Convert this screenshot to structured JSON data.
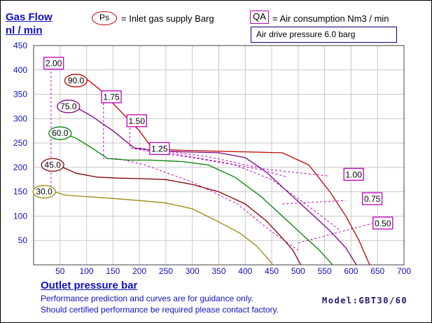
{
  "y_title_1": "Gas Flow",
  "y_title_2": "nl / min",
  "legend": {
    "ps_key": "Ps",
    "ps_desc": "= Inlet gas supply  Barg",
    "qa_key": "QA",
    "qa_desc": "= Air consumption  Nm3 / min",
    "air_drive": "Air drive pressure  6.0 barg"
  },
  "x_title": "Outlet pressure   bar",
  "notes": [
    "Performance prediction and curves are for guidance only.",
    "Should certified performance be required please contact factory."
  ],
  "model": "Model:GBT30/60",
  "colors": {
    "axis_text": "#1010c0",
    "qa_line": "#c000c0"
  },
  "chart_data": {
    "type": "line",
    "title": "",
    "xlabel": "Outlet pressure   bar",
    "ylabel": "Gas Flow nl / min",
    "xlim": [
      0,
      700
    ],
    "ylim": [
      0,
      450
    ],
    "x_ticks": [
      50,
      100,
      150,
      200,
      250,
      300,
      350,
      400,
      450,
      500,
      550,
      600,
      650,
      700
    ],
    "y_ticks": [
      50,
      100,
      150,
      200,
      250,
      300,
      350,
      400,
      450
    ],
    "grid": true,
    "series": [
      {
        "name": "30.0",
        "color": "#9a8a10",
        "label_at": [
          20,
          150
        ],
        "points": [
          [
            0,
            155
          ],
          [
            20,
            155
          ],
          [
            40,
            150
          ],
          [
            60,
            143
          ],
          [
            100,
            140
          ],
          [
            140,
            137
          ],
          [
            200,
            132
          ],
          [
            250,
            127
          ],
          [
            300,
            115
          ],
          [
            350,
            88
          ],
          [
            390,
            65
          ],
          [
            420,
            40
          ],
          [
            445,
            10
          ],
          [
            452,
            0
          ]
        ]
      },
      {
        "name": "45.0",
        "color": "#800000",
        "label_at": [
          36,
          205
        ],
        "points": [
          [
            40,
            205
          ],
          [
            60,
            198
          ],
          [
            80,
            188
          ],
          [
            120,
            180
          ],
          [
            160,
            178
          ],
          [
            200,
            177
          ],
          [
            250,
            175
          ],
          [
            300,
            165
          ],
          [
            350,
            150
          ],
          [
            400,
            125
          ],
          [
            440,
            90
          ],
          [
            470,
            55
          ],
          [
            490,
            30
          ],
          [
            505,
            0
          ]
        ]
      },
      {
        "name": "60.0",
        "color": "#008000",
        "label_at": [
          50,
          270
        ],
        "points": [
          [
            55,
            270
          ],
          [
            80,
            260
          ],
          [
            110,
            240
          ],
          [
            140,
            218
          ],
          [
            180,
            215
          ],
          [
            220,
            215
          ],
          [
            280,
            212
          ],
          [
            330,
            205
          ],
          [
            380,
            180
          ],
          [
            430,
            140
          ],
          [
            470,
            100
          ],
          [
            510,
            60
          ],
          [
            540,
            30
          ],
          [
            565,
            0
          ]
        ]
      },
      {
        "name": "75.0",
        "color": "#800080",
        "label_at": [
          66,
          325
        ],
        "points": [
          [
            70,
            330
          ],
          [
            110,
            305
          ],
          [
            150,
            275
          ],
          [
            190,
            240
          ],
          [
            230,
            234
          ],
          [
            280,
            232
          ],
          [
            350,
            230
          ],
          [
            400,
            220
          ],
          [
            440,
            190
          ],
          [
            480,
            150
          ],
          [
            520,
            110
          ],
          [
            560,
            70
          ],
          [
            590,
            35
          ],
          [
            610,
            0
          ]
        ]
      },
      {
        "name": "90.0",
        "color": "#c00000",
        "label_at": [
          80,
          378
        ],
        "points": [
          [
            90,
            390
          ],
          [
            125,
            360
          ],
          [
            160,
            320
          ],
          [
            200,
            275
          ],
          [
            225,
            238
          ],
          [
            280,
            235
          ],
          [
            350,
            233
          ],
          [
            470,
            230
          ],
          [
            520,
            205
          ],
          [
            560,
            150
          ],
          [
            590,
            100
          ],
          [
            615,
            50
          ],
          [
            635,
            0
          ]
        ]
      }
    ],
    "qa_lines": [
      {
        "label": "2.00",
        "label_at": [
          38,
          413
        ],
        "points": [
          [
            33,
            405
          ],
          [
            33,
            150
          ]
        ]
      },
      {
        "label": "1.75",
        "label_at": [
          147,
          344
        ],
        "points": [
          [
            132,
            332
          ],
          [
            132,
            218
          ],
          [
            160,
            218
          ],
          [
            210,
            205
          ],
          [
            300,
            170
          ],
          [
            385,
            125
          ],
          [
            450,
            68
          ],
          [
            500,
            30
          ]
        ]
      },
      {
        "label": "1.50",
        "label_at": [
          195,
          295
        ],
        "points": [
          [
            182,
            290
          ],
          [
            182,
            240
          ],
          [
            220,
            232
          ],
          [
            300,
            220
          ],
          [
            380,
            205
          ],
          [
            450,
            175
          ],
          [
            520,
            120
          ],
          [
            580,
            70
          ]
        ]
      },
      {
        "label": "1.25",
        "label_at": [
          238,
          238
        ],
        "points": [
          [
            200,
            240
          ],
          [
            280,
            225
          ],
          [
            360,
            210
          ],
          [
            430,
            195
          ],
          [
            480,
            180
          ]
        ]
      },
      {
        "label": "1.00",
        "label_at": [
          605,
          185
        ],
        "points": [
          [
            230,
            236
          ],
          [
            330,
            222
          ],
          [
            440,
            196
          ],
          [
            560,
            182
          ]
        ]
      },
      {
        "label": "0.75",
        "label_at": [
          640,
          135
        ],
        "points": [
          [
            470,
            125
          ],
          [
            590,
            132
          ]
        ]
      },
      {
        "label": "0.50",
        "label_at": [
          660,
          85
        ],
        "points": [
          [
            500,
            45
          ],
          [
            640,
            85
          ]
        ]
      }
    ]
  }
}
